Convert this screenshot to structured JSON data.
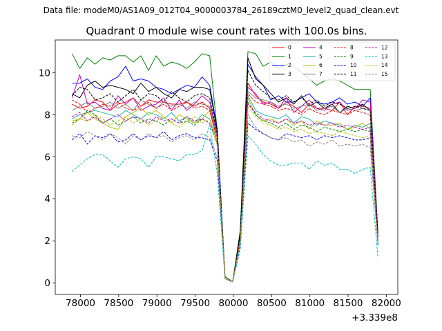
{
  "header": {
    "data_file": "Data file: modeM0/AS1A09_012T04_9000003784_26189cztM0_level2_quad_clean.evt"
  },
  "chart_data": {
    "type": "line",
    "title": "Quadrant 0 module wise count rates with 100.0s bins.",
    "xlabel": "",
    "ylabel": "",
    "x_offset_label": "+3.339e8",
    "x_offset": 333900000,
    "xlim": [
      77670,
      82150
    ],
    "ylim": [
      -0.55,
      11.55
    ],
    "x_ticks": [
      78000,
      78500,
      79000,
      79500,
      80000,
      80500,
      81000,
      81500,
      82000
    ],
    "y_ticks": [
      0,
      2,
      4,
      6,
      8,
      10
    ],
    "grid": false,
    "legend_position": "top-right",
    "x": [
      77890,
      77990,
      78090,
      78190,
      78290,
      78390,
      78490,
      78590,
      78690,
      78790,
      78890,
      78990,
      79090,
      79190,
      79290,
      79390,
      79490,
      79590,
      79690,
      79790,
      79890,
      79990,
      80090,
      80190,
      80290,
      80390,
      80490,
      80590,
      80690,
      80790,
      80890,
      80990,
      81090,
      81190,
      81290,
      81390,
      81490,
      81590,
      81690,
      81790,
      81890
    ],
    "series": [
      {
        "name": "0",
        "color": "#ff0000",
        "dash": "solid",
        "values": [
          8.5,
          8.3,
          8.4,
          8.7,
          8.6,
          8.2,
          8.5,
          8.6,
          8.8,
          8.4,
          8.7,
          8.6,
          8.6,
          8.5,
          8.5,
          8.6,
          8.4,
          8.6,
          8.3,
          6.9,
          0.3,
          0.05,
          2.3,
          9.5,
          8.9,
          8.6,
          8.5,
          8.3,
          8.6,
          8.4,
          8.1,
          8.5,
          8.3,
          8.3,
          8.2,
          8.6,
          8.0,
          8.4,
          8.4,
          8.3,
          2.2
        ]
      },
      {
        "name": "1",
        "color": "#008000",
        "dash": "solid",
        "values": [
          10.9,
          10.2,
          10.7,
          10.4,
          10.7,
          10.6,
          10.8,
          10.8,
          10.5,
          10.8,
          10.1,
          10.8,
          10.3,
          10.5,
          10.4,
          10.2,
          10.5,
          10.9,
          10.8,
          7.2,
          0.3,
          0.05,
          2.5,
          11.0,
          10.9,
          10.3,
          10.5,
          10.2,
          10.4,
          10.3,
          10.0,
          9.7,
          9.4,
          9.6,
          9.7,
          9.6,
          9.4,
          9.2,
          9.2,
          9.2,
          2.4
        ]
      },
      {
        "name": "2",
        "color": "#0000ff",
        "dash": "solid",
        "values": [
          9.5,
          9.5,
          9.7,
          9.3,
          9.2,
          9.6,
          9.8,
          10.3,
          9.6,
          9.7,
          9.6,
          9.3,
          9.2,
          9.0,
          9.2,
          9.4,
          9.3,
          9.8,
          9.4,
          7.3,
          0.2,
          0.05,
          2.2,
          10.4,
          9.8,
          9.4,
          8.7,
          8.9,
          8.6,
          8.6,
          8.8,
          9.0,
          8.6,
          8.5,
          8.6,
          8.8,
          8.5,
          8.6,
          8.4,
          8.8,
          2.3
        ]
      },
      {
        "name": "3",
        "color": "#000000",
        "dash": "solid",
        "values": [
          9.0,
          8.8,
          9.4,
          9.6,
          9.3,
          9.4,
          9.3,
          9.2,
          9.0,
          9.5,
          9.1,
          9.3,
          9.0,
          8.8,
          9.2,
          9.1,
          9.3,
          9.3,
          9.2,
          7.2,
          0.2,
          0.05,
          2.4,
          10.7,
          9.7,
          9.4,
          9.0,
          8.6,
          8.8,
          8.5,
          8.9,
          8.4,
          8.6,
          8.3,
          8.5,
          8.1,
          8.4,
          8.3,
          8.5,
          8.2,
          2.4
        ]
      },
      {
        "name": "4",
        "color": "#bf00bf",
        "dash": "solid",
        "values": [
          8.8,
          9.9,
          8.5,
          8.6,
          8.3,
          8.2,
          8.9,
          8.5,
          8.8,
          8.2,
          8.4,
          8.5,
          8.8,
          8.2,
          8.7,
          8.2,
          8.5,
          8.9,
          8.6,
          7.0,
          0.2,
          0.05,
          2.2,
          9.3,
          9.0,
          8.5,
          8.6,
          8.3,
          8.8,
          8.1,
          8.4,
          8.7,
          8.3,
          8.2,
          8.5,
          8.6,
          8.2,
          8.3,
          8.7,
          8.6,
          2.2
        ]
      },
      {
        "name": "5",
        "color": "#20b2aa",
        "dash": "solid",
        "values": [
          7.8,
          8.0,
          8.1,
          8.2,
          8.1,
          8.0,
          7.9,
          8.2,
          8.0,
          7.8,
          8.1,
          8.0,
          7.8,
          8.1,
          7.7,
          7.9,
          7.6,
          8.0,
          7.8,
          6.7,
          0.2,
          0.05,
          2.0,
          8.9,
          8.2,
          8.0,
          7.9,
          7.8,
          8.0,
          7.6,
          7.9,
          7.8,
          7.5,
          7.7,
          7.6,
          7.5,
          7.3,
          7.5,
          7.4,
          7.6,
          2.0
        ]
      },
      {
        "name": "6",
        "color": "#bfbf00",
        "dash": "solid",
        "values": [
          7.7,
          7.8,
          8.1,
          7.8,
          7.6,
          7.4,
          7.3,
          7.9,
          8.1,
          8.3,
          8.0,
          8.2,
          7.9,
          7.6,
          8.0,
          7.8,
          7.6,
          7.8,
          8.2,
          6.6,
          0.2,
          0.05,
          2.0,
          8.8,
          8.0,
          7.7,
          7.8,
          7.6,
          7.8,
          7.5,
          7.7,
          7.3,
          7.7,
          7.5,
          7.5,
          7.6,
          7.3,
          7.4,
          7.6,
          7.3,
          2.0
        ]
      },
      {
        "name": "7",
        "color": "#808080",
        "dash": "solid",
        "values": [
          8.2,
          8.4,
          8.6,
          8.3,
          8.4,
          8.6,
          8.3,
          8.5,
          8.2,
          8.7,
          8.5,
          8.3,
          8.6,
          8.4,
          8.5,
          8.3,
          8.6,
          8.5,
          8.4,
          6.9,
          0.2,
          0.05,
          2.1,
          9.1,
          8.8,
          8.7,
          8.6,
          8.4,
          8.5,
          8.3,
          8.4,
          8.5,
          8.2,
          8.3,
          8.4,
          8.1,
          8.3,
          8.2,
          8.3,
          8.2,
          2.1
        ]
      },
      {
        "name": "8",
        "color": "#ff0000",
        "dash": "dashed",
        "values": [
          8.7,
          8.5,
          8.1,
          8.3,
          8.5,
          8.4,
          8.6,
          8.3,
          8.2,
          8.4,
          8.6,
          8.3,
          8.5,
          8.2,
          8.4,
          8.6,
          8.3,
          8.4,
          8.2,
          6.8,
          0.2,
          0.05,
          2.1,
          9.0,
          8.6,
          8.5,
          8.4,
          8.2,
          8.3,
          8.2,
          8.0,
          8.3,
          8.1,
          8.0,
          8.2,
          8.1,
          8.0,
          8.2,
          8.1,
          8.0,
          2.1
        ]
      },
      {
        "name": "9",
        "color": "#008000",
        "dash": "dashed",
        "values": [
          7.6,
          7.8,
          8.2,
          8.0,
          7.6,
          7.8,
          7.5,
          7.7,
          7.9,
          7.6,
          7.8,
          7.7,
          7.5,
          7.8,
          7.6,
          7.7,
          7.5,
          7.8,
          7.6,
          6.6,
          0.2,
          0.05,
          2.0,
          8.6,
          8.0,
          7.7,
          7.6,
          7.4,
          7.6,
          7.3,
          7.5,
          7.4,
          7.2,
          7.4,
          7.3,
          7.2,
          7.3,
          7.2,
          7.3,
          7.2,
          1.9
        ]
      },
      {
        "name": "10",
        "color": "#0000ff",
        "dash": "dashed",
        "values": [
          6.8,
          7.1,
          6.6,
          7.0,
          6.9,
          7.1,
          6.7,
          6.8,
          7.1,
          6.8,
          7.0,
          6.9,
          7.2,
          6.8,
          7.0,
          7.1,
          6.9,
          6.9,
          6.8,
          5.8,
          0.2,
          0.05,
          1.8,
          7.6,
          7.3,
          7.1,
          6.9,
          6.8,
          7.1,
          7.0,
          6.9,
          7.0,
          6.8,
          7.0,
          6.9,
          7.0,
          6.9,
          6.8,
          6.8,
          6.9,
          1.8
        ]
      },
      {
        "name": "11",
        "color": "#000000",
        "dash": "dashed",
        "values": [
          8.9,
          9.3,
          9.2,
          8.7,
          8.8,
          9.0,
          8.6,
          8.9,
          9.2,
          8.7,
          9.0,
          8.9,
          8.6,
          9.1,
          8.8,
          8.6,
          8.9,
          9.0,
          8.8,
          7.1,
          0.2,
          0.05,
          2.3,
          10.1,
          9.4,
          9.1,
          8.8,
          8.7,
          8.9,
          8.6,
          8.8,
          8.5,
          8.7,
          8.4,
          8.6,
          8.5,
          8.3,
          8.4,
          8.3,
          8.2,
          2.2
        ]
      },
      {
        "name": "12",
        "color": "#bf00bf",
        "dash": "dashed",
        "values": [
          7.9,
          8.1,
          7.7,
          7.9,
          7.6,
          7.8,
          8.0,
          7.7,
          7.9,
          7.8,
          7.6,
          7.9,
          7.7,
          7.8,
          7.6,
          7.9,
          7.7,
          7.8,
          7.6,
          6.6,
          0.2,
          0.05,
          2.0,
          8.5,
          8.1,
          7.8,
          7.7,
          7.6,
          7.8,
          7.6,
          7.7,
          7.5,
          7.6,
          7.5,
          7.6,
          7.4,
          7.5,
          7.4,
          7.3,
          7.4,
          1.9
        ]
      },
      {
        "name": "13",
        "color": "#00bfbf",
        "dash": "dashed",
        "values": [
          5.3,
          5.6,
          5.9,
          6.1,
          6.1,
          5.8,
          5.5,
          5.9,
          6.0,
          5.9,
          5.5,
          6.0,
          6.0,
          5.9,
          5.8,
          6.1,
          6.1,
          6.3,
          7.5,
          5.2,
          0.2,
          0.05,
          1.6,
          7.0,
          6.6,
          6.1,
          5.8,
          5.6,
          5.6,
          5.7,
          5.7,
          5.4,
          5.8,
          5.6,
          5.7,
          5.4,
          5.4,
          5.2,
          5.4,
          5.5,
          1.2
        ]
      },
      {
        "name": "14",
        "color": "#bfbf00",
        "dash": "dashed",
        "values": [
          7.5,
          7.8,
          7.7,
          8.0,
          7.8,
          7.5,
          7.7,
          7.9,
          7.6,
          7.8,
          7.5,
          7.7,
          7.9,
          7.6,
          7.4,
          7.7,
          7.9,
          7.6,
          7.8,
          6.5,
          0.2,
          0.05,
          2.0,
          8.4,
          7.9,
          7.6,
          7.5,
          7.3,
          7.4,
          7.2,
          7.3,
          7.1,
          7.2,
          7.1,
          7.0,
          7.2,
          7.1,
          7.0,
          6.9,
          7.0,
          1.9
        ]
      },
      {
        "name": "15",
        "color": "#808080",
        "dash": "dashed",
        "values": [
          7.0,
          6.9,
          7.2,
          7.0,
          6.8,
          7.1,
          6.9,
          6.6,
          7.0,
          6.8,
          7.1,
          6.9,
          7.0,
          6.7,
          6.9,
          7.0,
          6.8,
          7.1,
          6.9,
          6.0,
          0.2,
          0.05,
          1.9,
          8.0,
          7.4,
          7.1,
          6.9,
          6.8,
          6.9,
          6.7,
          6.8,
          6.5,
          6.7,
          6.6,
          6.8,
          6.5,
          6.6,
          6.5,
          6.6,
          6.4,
          1.9
        ]
      }
    ]
  }
}
